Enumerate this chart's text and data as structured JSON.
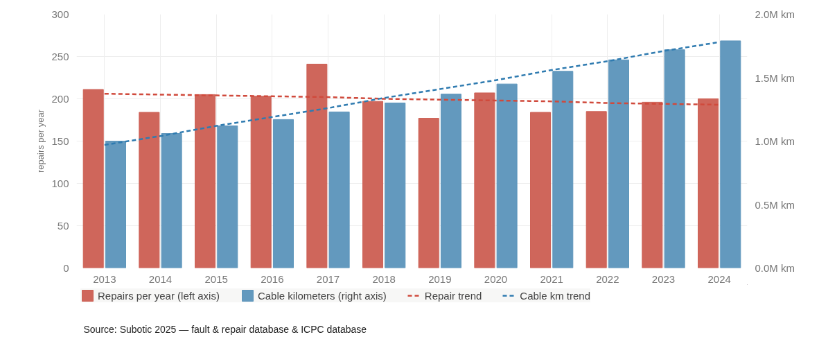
{
  "chart_data": {
    "type": "bar",
    "ylabel": "repairs per year",
    "categories": [
      "2013",
      "2014",
      "2015",
      "2016",
      "2017",
      "2018",
      "2019",
      "2020",
      "2021",
      "2022",
      "2023",
      "2024"
    ],
    "series": [
      {
        "name": "Repairs per year (left axis)",
        "color": "#cc5e52",
        "values": [
          211,
          184,
          205,
          203,
          241,
          197,
          177,
          207,
          184,
          185,
          196,
          200
        ]
      },
      {
        "name": "Cable kilometers (right axis)",
        "color": "#5b94ba",
        "axis": "y2",
        "values": [
          1.0,
          1.06,
          1.12,
          1.17,
          1.23,
          1.3,
          1.37,
          1.45,
          1.55,
          1.64,
          1.72,
          1.79
        ]
      },
      {
        "name": "Repair trend",
        "type": "line",
        "line_style": "dashed",
        "color": "#d04a3c",
        "values": [
          206,
          205,
          204,
          203,
          202,
          200,
          199,
          198,
          197,
          195,
          194,
          193
        ]
      },
      {
        "name": "Cable km trend",
        "type": "line",
        "line_style": "dashed",
        "color": "#2f7bb0",
        "axis": "y2",
        "values": [
          0.97,
          1.04,
          1.12,
          1.19,
          1.26,
          1.34,
          1.41,
          1.48,
          1.56,
          1.63,
          1.71,
          1.78
        ]
      }
    ],
    "ylim": [
      0,
      300
    ],
    "yticks": [
      0,
      50,
      100,
      150,
      200,
      250,
      300
    ],
    "y2lim": [
      0,
      2
    ],
    "y2ticks": [
      {
        "value": 0,
        "label": "0.0M km"
      },
      {
        "value": 0.5,
        "label": "0.5M km"
      },
      {
        "value": 1,
        "label": "1.0M km"
      },
      {
        "value": 1.5,
        "label": "1.5M km"
      },
      {
        "value": 2,
        "label": "2.0M km"
      }
    ],
    "grid": true,
    "legend": "bottom",
    "annotations": [
      "Source: Subotic 2025 — fault & repair database & ICPC database"
    ]
  }
}
